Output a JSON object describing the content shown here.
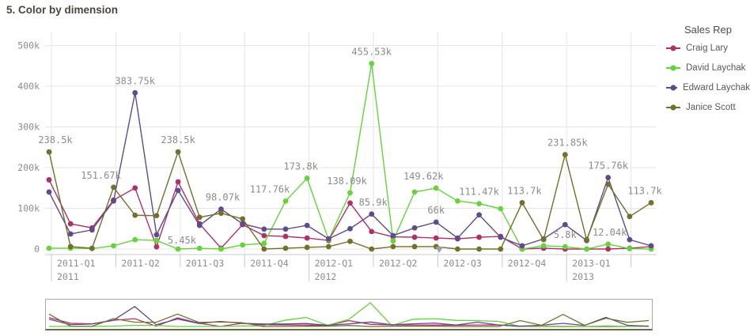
{
  "title": "5. Color by dimension",
  "legend": {
    "title": "Sales Rep",
    "items": [
      {
        "label": "Craig Lary",
        "color": "#ae3168"
      },
      {
        "label": "David Laychak",
        "color": "#5bd733"
      },
      {
        "label": "Edward Laychak",
        "color": "#5f4a8e"
      },
      {
        "label": "Janice Scott",
        "color": "#73702b"
      }
    ]
  },
  "chart_data": {
    "type": "line",
    "title": "5. Color by dimension",
    "x_dimension": "YearMonth",
    "series_dimension": "Sales Rep",
    "y_unit": "k",
    "ylim_k": [
      0,
      500
    ],
    "y_ticks": [
      {
        "label": "500k",
        "value_k": 500
      },
      {
        "label": "400k",
        "value_k": 400
      },
      {
        "label": "300k",
        "value_k": 300
      },
      {
        "label": "200k",
        "value_k": 200
      },
      {
        "label": "100k",
        "value_k": 100
      },
      {
        "label": "0",
        "value_k": 0
      }
    ],
    "quarter_ticks": [
      "2011-Q1",
      "2011-Q2",
      "2011-Q3",
      "2011-Q4",
      "2012-Q1",
      "2012-Q2",
      "2012-Q3",
      "2012-Q4",
      "2013-Q1"
    ],
    "year_ticks": [
      {
        "label": "2011",
        "quarter_index": 0
      },
      {
        "label": "2012",
        "quarter_index": 4
      },
      {
        "label": "2013",
        "quarter_index": 8
      }
    ],
    "months": [
      "2011-01",
      "2011-02",
      "2011-03",
      "2011-04",
      "2011-05",
      "2011-06",
      "2011-07",
      "2011-08",
      "2011-09",
      "2011-10",
      "2011-11",
      "2011-12",
      "2012-01",
      "2012-02",
      "2012-03",
      "2012-04",
      "2012-05",
      "2012-06",
      "2012-07",
      "2012-08",
      "2012-09",
      "2012-10",
      "2012-11",
      "2012-12",
      "2013-01",
      "2013-02",
      "2013-03",
      "2013-04",
      "2013-05"
    ],
    "series": [
      {
        "name": "Craig Lary",
        "color": "#ae3168",
        "values_k": [
          170,
          62,
          52,
          120,
          150,
          5.45,
          165,
          62,
          2,
          60,
          33,
          31,
          27,
          21,
          113,
          43,
          30,
          29,
          27,
          25,
          29,
          31,
          0,
          2,
          0,
          0,
          0,
          2,
          6
        ]
      },
      {
        "name": "David Laychak",
        "color": "#65d339",
        "values_k": [
          2,
          2,
          1,
          8,
          23,
          21,
          0,
          2,
          0,
          10,
          14,
          117.76,
          173.8,
          23,
          138.09,
          455.53,
          20,
          140,
          149.62,
          118,
          111.47,
          99,
          0,
          8,
          5.8,
          0,
          12.04,
          1,
          0
        ]
      },
      {
        "name": "Edward Laychak",
        "color": "#5f4a8e",
        "values_k": [
          140,
          37,
          47,
          118,
          383.75,
          35,
          144,
          58,
          98.07,
          62,
          49,
          49,
          58,
          25,
          50,
          85.9,
          33,
          52,
          66,
          27,
          84,
          29,
          8,
          25,
          60,
          21,
          175.76,
          23,
          8
        ]
      },
      {
        "name": "Janice Scott",
        "color": "#73702b",
        "values_k": [
          238.5,
          6,
          2,
          151.67,
          83,
          82,
          238.5,
          78,
          88,
          74,
          0,
          2,
          4,
          6,
          19,
          0,
          6,
          6,
          6,
          0,
          0,
          0,
          113.7,
          23,
          231.85,
          23,
          159,
          80,
          113.7
        ]
      }
    ],
    "point_labels": [
      {
        "text": "238.5k",
        "series": 3,
        "month_index": 0,
        "dx": 8
      },
      {
        "text": "151.67k",
        "series": 3,
        "month_index": 3,
        "dx": -16
      },
      {
        "text": "383.75k",
        "series": 2,
        "month_index": 4,
        "dx": 0
      },
      {
        "text": "5.45k",
        "series": 0,
        "month_index": 5,
        "dx": 32,
        "dy": 4
      },
      {
        "text": "238.5k",
        "series": 3,
        "month_index": 6,
        "dx": 0
      },
      {
        "text": "98.07k",
        "series": 2,
        "month_index": 8,
        "dx": 2
      },
      {
        "text": "117.76k",
        "series": 1,
        "month_index": 11,
        "dx": -20
      },
      {
        "text": "173.8k",
        "series": 1,
        "month_index": 12,
        "dx": -8
      },
      {
        "text": "138.09k",
        "series": 1,
        "month_index": 14,
        "dx": -4
      },
      {
        "text": "455.53k",
        "series": 1,
        "month_index": 15,
        "dx": 0
      },
      {
        "text": "85.9k",
        "series": 2,
        "month_index": 15,
        "dx": 2
      },
      {
        "text": "149.62k",
        "series": 1,
        "month_index": 18,
        "dx": -16
      },
      {
        "text": "66k",
        "series": 2,
        "month_index": 18,
        "dx": 0
      },
      {
        "text": "111.47k",
        "series": 1,
        "month_index": 20,
        "dx": 0
      },
      {
        "text": "113.7k",
        "series": 3,
        "month_index": 22,
        "dx": 3
      },
      {
        "text": "231.85k",
        "series": 3,
        "month_index": 24,
        "dx": 3
      },
      {
        "text": "5.8k",
        "series": 1,
        "month_index": 24,
        "dx": 0
      },
      {
        "text": "12.04k",
        "series": 1,
        "month_index": 26,
        "dx": 2
      },
      {
        "text": "175.76k",
        "series": 2,
        "month_index": 26,
        "dx": 0
      },
      {
        "text": "113.7k",
        "series": 3,
        "month_index": 28,
        "dx": -8
      }
    ],
    "annotations": [
      {
        "shape": "down-triangle",
        "color": "#9aa0a6",
        "month_index": 18,
        "value_k": 0
      }
    ],
    "grid": true,
    "legend_position": "right",
    "navigator": true
  },
  "colors": {
    "title_text": "#4a463e",
    "axis_text": "#8c8c8c",
    "grid_line": "#e6e6e6",
    "axis_line": "#c9c9c9",
    "label_text": "#8c8c8c"
  }
}
